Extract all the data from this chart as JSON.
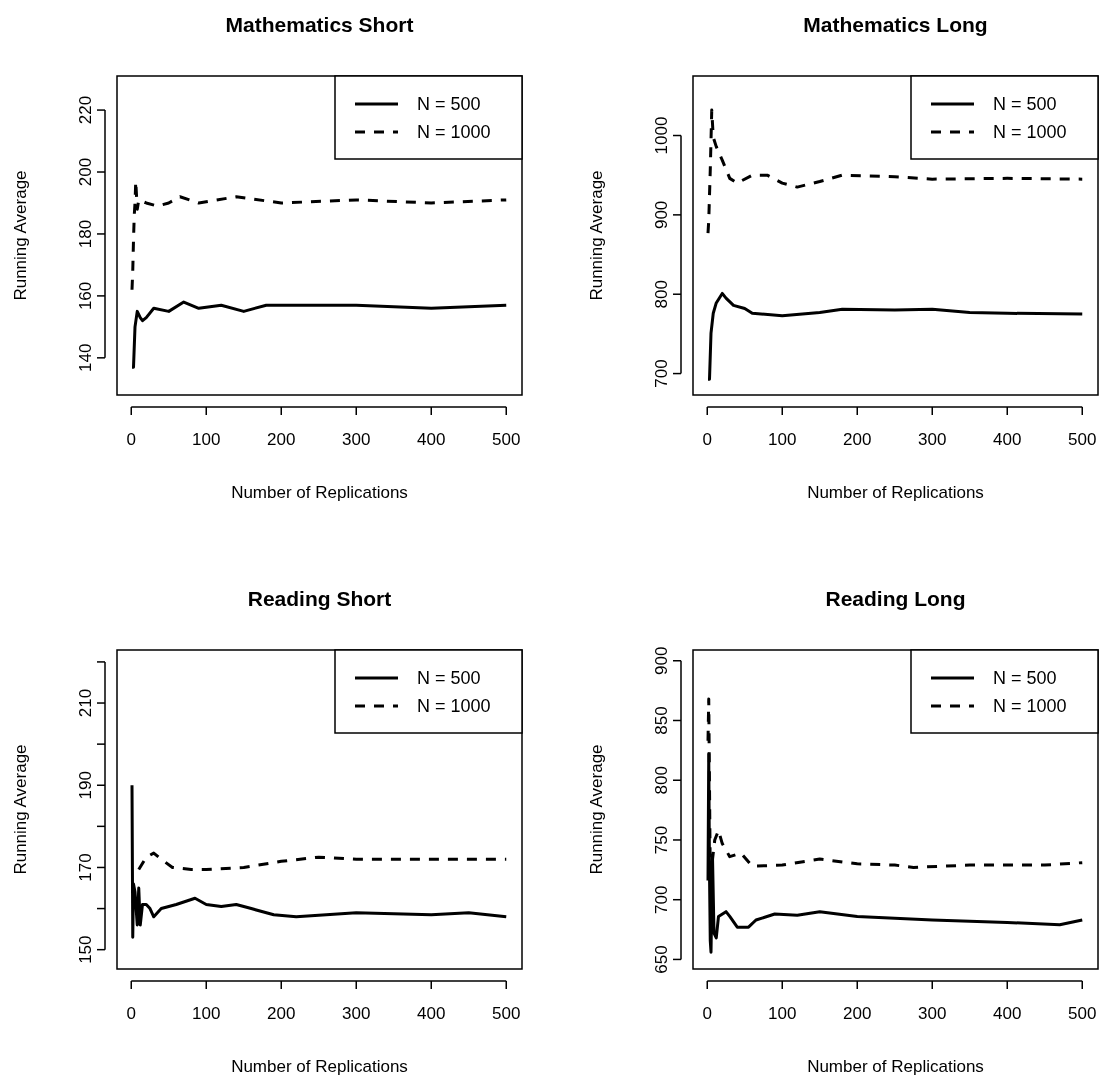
{
  "chart_data": [
    {
      "type": "line",
      "title": "Mathematics Short",
      "xlabel": "Number of Replications",
      "ylabel": "Running Average",
      "xlim": [
        -19,
        521
      ],
      "xticks": [
        0,
        100,
        200,
        300,
        400,
        500
      ],
      "ylim": [
        128,
        231
      ],
      "yticks": [
        140,
        160,
        180,
        200,
        220
      ],
      "legend": "top right",
      "series": [
        {
          "name": "N = 500",
          "color": "#000000",
          "line_style": "solid",
          "x": [
            1,
            3,
            5,
            8,
            12,
            15,
            20,
            30,
            50,
            70,
            90,
            120,
            150,
            180,
            250,
            300,
            400,
            500
          ],
          "values": [
            137,
            137,
            150,
            155,
            153,
            152,
            153,
            156,
            155,
            158,
            156,
            157,
            155,
            157,
            157,
            157,
            156,
            157
          ]
        },
        {
          "name": "N = 1000",
          "color": "#000000",
          "line_style": "dashed",
          "x": [
            1,
            2,
            3,
            4,
            5,
            6,
            8,
            10,
            20,
            35,
            50,
            65,
            90,
            140,
            200,
            300,
            400,
            500
          ],
          "values": [
            162,
            168,
            178,
            186,
            190,
            197,
            188,
            191,
            190,
            189,
            190,
            192,
            190,
            192,
            190,
            191,
            190,
            191
          ]
        }
      ]
    },
    {
      "type": "line",
      "title": "Mathematics Long",
      "xlabel": "Number of Replications",
      "ylabel": "Running Average",
      "xlim": [
        -19,
        521
      ],
      "xticks": [
        0,
        100,
        200,
        300,
        400,
        500
      ],
      "ylim": [
        673,
        1075
      ],
      "yticks": [
        700,
        800,
        900,
        1000
      ],
      "legend": "top right",
      "series": [
        {
          "name": "N = 500",
          "color": "#000000",
          "line_style": "solid",
          "x": [
            1,
            3,
            5,
            8,
            12,
            20,
            25,
            35,
            50,
            60,
            100,
            150,
            180,
            250,
            300,
            350,
            400,
            500
          ],
          "values": [
            693,
            693,
            751,
            776,
            789,
            801,
            795,
            786,
            782,
            776,
            773,
            777,
            781,
            780,
            781,
            777,
            776,
            775
          ]
        },
        {
          "name": "N = 1000",
          "color": "#000000",
          "line_style": "dashed",
          "x": [
            1,
            2,
            4,
            6,
            8,
            12,
            20,
            30,
            40,
            60,
            80,
            100,
            120,
            150,
            180,
            250,
            300,
            400,
            500
          ],
          "values": [
            877,
            893,
            956,
            1032,
            998,
            986,
            969,
            946,
            940,
            950,
            950,
            940,
            935,
            942,
            950,
            948,
            945,
            946,
            945
          ]
        }
      ]
    },
    {
      "type": "line",
      "title": "Reading Short",
      "xlabel": "Number of Replications",
      "ylabel": "Running Average",
      "xlim": [
        -19,
        521
      ],
      "xticks": [
        0,
        100,
        200,
        300,
        400,
        500
      ],
      "ylim": [
        145.3,
        222.9
      ],
      "yticks": [
        150,
        {
          "value": 160,
          "label": null
        },
        170,
        {
          "value": 180,
          "label": null
        },
        190,
        {
          "value": 200,
          "label": null
        },
        210,
        {
          "value": 220,
          "label": null
        }
      ],
      "legend": "top right",
      "series": [
        {
          "name": "N = 500",
          "color": "#000000",
          "line_style": "solid",
          "x": [
            1,
            2,
            3,
            5,
            8,
            10,
            12,
            15,
            20,
            25,
            30,
            40,
            60,
            85,
            100,
            120,
            140,
            160,
            190,
            220,
            300,
            400,
            450,
            500
          ],
          "values": [
            190,
            153,
            166,
            164,
            156,
            165,
            156,
            161,
            161,
            160,
            158,
            160,
            161,
            162.5,
            161,
            160.5,
            161,
            160,
            158.5,
            158,
            159,
            158.5,
            159,
            158
          ]
        },
        {
          "name": "N = 1000",
          "color": "#000000",
          "line_style": "dashed",
          "x": [
            10,
            20,
            30,
            40,
            55,
            80,
            100,
            150,
            200,
            250,
            300,
            400,
            500
          ],
          "values": [
            169.5,
            172.5,
            173.5,
            172,
            170,
            169.5,
            169.5,
            170,
            171.5,
            172.5,
            172,
            172,
            172
          ]
        }
      ]
    },
    {
      "type": "line",
      "title": "Reading Long",
      "xlabel": "Number of Replications",
      "ylabel": "Running Average",
      "xlim": [
        -19,
        521
      ],
      "xticks": [
        0,
        100,
        200,
        300,
        400,
        500
      ],
      "ylim": [
        642,
        909
      ],
      "yticks": [
        650,
        700,
        750,
        800,
        850,
        900
      ],
      "legend": "top right",
      "series": [
        {
          "name": "N = 500",
          "color": "#000000",
          "line_style": "solid",
          "x": [
            1,
            2,
            3,
            4,
            5,
            7,
            9,
            12,
            15,
            25,
            30,
            40,
            55,
            65,
            90,
            120,
            150,
            200,
            300,
            400,
            470,
            500
          ],
          "values": [
            716,
            822,
            722,
            666,
            656,
            736,
            672,
            668,
            686,
            690,
            686,
            677,
            677,
            683,
            688,
            687,
            690,
            686,
            683,
            681,
            679,
            683
          ]
        },
        {
          "name": "N = 1000",
          "color": "#000000",
          "line_style": "dashed",
          "x": [
            1,
            2,
            4,
            6,
            10,
            15,
            20,
            30,
            45,
            60,
            100,
            150,
            200,
            250,
            275,
            350,
            450,
            500
          ],
          "values": [
            833,
            868,
            722,
            728,
            750,
            758,
            747,
            736,
            739,
            728,
            729,
            734,
            730,
            729,
            727,
            729,
            729,
            731
          ]
        }
      ]
    }
  ]
}
